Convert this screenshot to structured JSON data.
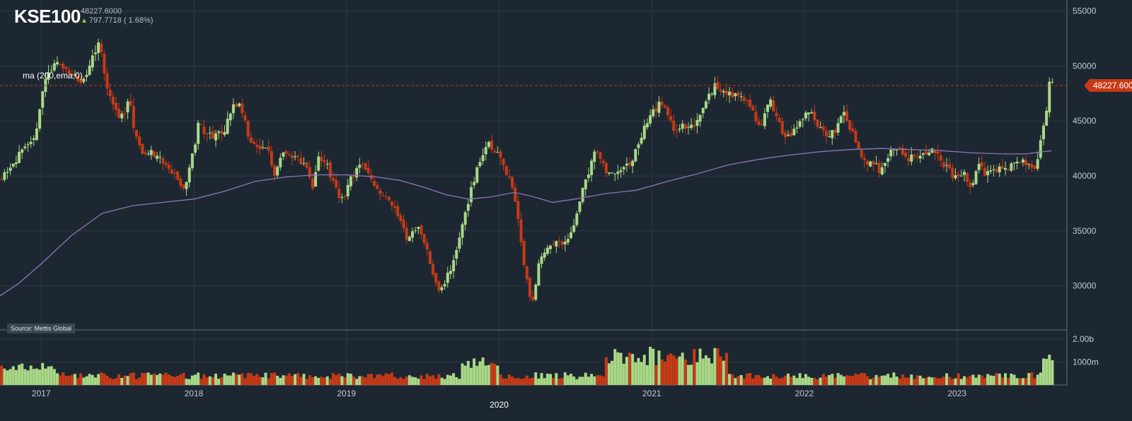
{
  "header": {
    "ticker": "KSE100",
    "price": "48227.6000",
    "change": "797.7718 ( 1.68%)"
  },
  "indicator_label": "ma (200,ema,0)",
  "source": "Source: Mettis Global",
  "last_price_label": "48227.600",
  "colors": {
    "background": "#1d2731",
    "grid": "#2c3843",
    "up": "#a9d886",
    "down": "#c63a17",
    "ma_line": "#8f74b6",
    "last_line": "#b8341a"
  },
  "chart_data": {
    "type": "candlestick",
    "title": "KSE100",
    "y_ticks": [
      "55000",
      "50000",
      "45000",
      "40000",
      "35000",
      "30000"
    ],
    "y_tick_values": [
      55000,
      50000,
      45000,
      40000,
      35000,
      30000
    ],
    "ylim": [
      26000,
      56000
    ],
    "volume_ticks": [
      "2.00b",
      "1000m"
    ],
    "volume_tick_values": [
      2000,
      1000
    ],
    "volume_ylim": [
      0,
      2300
    ],
    "x_ticks": [
      "2017",
      "2018",
      "2019",
      "2020",
      "2021",
      "2022",
      "2023"
    ],
    "x_tick_values": [
      2017.0,
      2018.0,
      2019.0,
      2020.0,
      2021.0,
      2022.0,
      2023.0
    ],
    "xlim": [
      2016.73,
      2023.72
    ],
    "last_price": 48227.6,
    "close_path": [
      [
        2016.74,
        40000
      ],
      [
        2016.85,
        41800
      ],
      [
        2016.95,
        43000
      ],
      [
        2017.02,
        48500
      ],
      [
        2017.06,
        49800
      ],
      [
        2017.12,
        50200
      ],
      [
        2017.2,
        49300
      ],
      [
        2017.27,
        48300
      ],
      [
        2017.33,
        50500
      ],
      [
        2017.38,
        52600
      ],
      [
        2017.42,
        48800
      ],
      [
        2017.47,
        46500
      ],
      [
        2017.52,
        45200
      ],
      [
        2017.58,
        46800
      ],
      [
        2017.62,
        43500
      ],
      [
        2017.67,
        42000
      ],
      [
        2017.72,
        42300
      ],
      [
        2017.78,
        41400
      ],
      [
        2017.83,
        40600
      ],
      [
        2017.88,
        40100
      ],
      [
        2017.93,
        38600
      ],
      [
        2017.98,
        41000
      ],
      [
        2018.03,
        44700
      ],
      [
        2018.08,
        44000
      ],
      [
        2018.13,
        43500
      ],
      [
        2018.2,
        44000
      ],
      [
        2018.26,
        46600
      ],
      [
        2018.31,
        46200
      ],
      [
        2018.36,
        43400
      ],
      [
        2018.42,
        42200
      ],
      [
        2018.48,
        42800
      ],
      [
        2018.53,
        40000
      ],
      [
        2018.58,
        42400
      ],
      [
        2018.63,
        42100
      ],
      [
        2018.68,
        41500
      ],
      [
        2018.73,
        41000
      ],
      [
        2018.78,
        38900
      ],
      [
        2018.82,
        41900
      ],
      [
        2018.87,
        41000
      ],
      [
        2018.93,
        38900
      ],
      [
        2018.98,
        37500
      ],
      [
        2019.03,
        39800
      ],
      [
        2019.09,
        41000
      ],
      [
        2019.15,
        40100
      ],
      [
        2019.2,
        38900
      ],
      [
        2019.25,
        38000
      ],
      [
        2019.3,
        37200
      ],
      [
        2019.35,
        36500
      ],
      [
        2019.4,
        34000
      ],
      [
        2019.46,
        35500
      ],
      [
        2019.52,
        33500
      ],
      [
        2019.57,
        31200
      ],
      [
        2019.6,
        29200
      ],
      [
        2019.63,
        29900
      ],
      [
        2019.68,
        31500
      ],
      [
        2019.74,
        34500
      ],
      [
        2019.8,
        37800
      ],
      [
        2019.86,
        40900
      ],
      [
        2019.92,
        42900
      ],
      [
        2019.97,
        42400
      ],
      [
        2020.03,
        41000
      ],
      [
        2020.08,
        39200
      ],
      [
        2020.12,
        36800
      ],
      [
        2020.17,
        31400
      ],
      [
        2020.21,
        28200
      ],
      [
        2020.26,
        31800
      ],
      [
        2020.32,
        33700
      ],
      [
        2020.38,
        34300
      ],
      [
        2020.43,
        33900
      ],
      [
        2020.48,
        35200
      ],
      [
        2020.53,
        37800
      ],
      [
        2020.58,
        40200
      ],
      [
        2020.63,
        42400
      ],
      [
        2020.68,
        41200
      ],
      [
        2020.72,
        40000
      ],
      [
        2020.77,
        40500
      ],
      [
        2020.82,
        40600
      ],
      [
        2020.87,
        41300
      ],
      [
        2020.92,
        43200
      ],
      [
        2020.97,
        45000
      ],
      [
        2021.02,
        46000
      ],
      [
        2021.06,
        46700
      ],
      [
        2021.1,
        45600
      ],
      [
        2021.15,
        44200
      ],
      [
        2021.19,
        44600
      ],
      [
        2021.23,
        44200
      ],
      [
        2021.27,
        44500
      ],
      [
        2021.32,
        45800
      ],
      [
        2021.36,
        47200
      ],
      [
        2021.41,
        48100
      ],
      [
        2021.47,
        47800
      ],
      [
        2021.52,
        47400
      ],
      [
        2021.57,
        47100
      ],
      [
        2021.62,
        47000
      ],
      [
        2021.67,
        45600
      ],
      [
        2021.72,
        44400
      ],
      [
        2021.77,
        46900
      ],
      [
        2021.82,
        45300
      ],
      [
        2021.87,
        43600
      ],
      [
        2021.91,
        43900
      ],
      [
        2021.96,
        44900
      ],
      [
        2022.01,
        45700
      ],
      [
        2022.06,
        45400
      ],
      [
        2022.11,
        44100
      ],
      [
        2022.16,
        43900
      ],
      [
        2022.21,
        44200
      ],
      [
        2022.26,
        45900
      ],
      [
        2022.31,
        44100
      ],
      [
        2022.36,
        42000
      ],
      [
        2022.41,
        41300
      ],
      [
        2022.46,
        41000
      ],
      [
        2022.5,
        40400
      ],
      [
        2022.55,
        41700
      ],
      [
        2022.6,
        42800
      ],
      [
        2022.65,
        41500
      ],
      [
        2022.7,
        41800
      ],
      [
        2022.75,
        41400
      ],
      [
        2022.8,
        42200
      ],
      [
        2022.85,
        42400
      ],
      [
        2022.9,
        41200
      ],
      [
        2022.95,
        40500
      ],
      [
        2023.0,
        39600
      ],
      [
        2023.05,
        40100
      ],
      [
        2023.09,
        38500
      ],
      [
        2023.14,
        41300
      ],
      [
        2023.18,
        40200
      ],
      [
        2023.23,
        40400
      ],
      [
        2023.28,
        40900
      ],
      [
        2023.33,
        40700
      ],
      [
        2023.38,
        41600
      ],
      [
        2023.43,
        41300
      ],
      [
        2023.48,
        41000
      ],
      [
        2023.52,
        40400
      ],
      [
        2023.56,
        44100
      ],
      [
        2023.59,
        46500
      ],
      [
        2023.61,
        49200
      ],
      [
        2023.63,
        48228
      ]
    ],
    "ma_path": [
      [
        2016.73,
        29100
      ],
      [
        2016.85,
        30200
      ],
      [
        2017.0,
        32000
      ],
      [
        2017.2,
        34600
      ],
      [
        2017.4,
        36600
      ],
      [
        2017.6,
        37300
      ],
      [
        2017.8,
        37600
      ],
      [
        2018.0,
        37900
      ],
      [
        2018.2,
        38600
      ],
      [
        2018.4,
        39500
      ],
      [
        2018.6,
        39900
      ],
      [
        2018.8,
        40100
      ],
      [
        2019.0,
        40100
      ],
      [
        2019.2,
        39900
      ],
      [
        2019.35,
        39600
      ],
      [
        2019.5,
        39000
      ],
      [
        2019.65,
        38300
      ],
      [
        2019.8,
        37900
      ],
      [
        2019.95,
        38100
      ],
      [
        2020.1,
        38500
      ],
      [
        2020.2,
        38200
      ],
      [
        2020.35,
        37600
      ],
      [
        2020.5,
        37900
      ],
      [
        2020.7,
        38400
      ],
      [
        2020.9,
        38700
      ],
      [
        2021.1,
        39500
      ],
      [
        2021.3,
        40200
      ],
      [
        2021.5,
        41000
      ],
      [
        2021.7,
        41500
      ],
      [
        2021.9,
        41900
      ],
      [
        2022.1,
        42200
      ],
      [
        2022.3,
        42400
      ],
      [
        2022.5,
        42500
      ],
      [
        2022.7,
        42400
      ],
      [
        2022.9,
        42300
      ],
      [
        2023.1,
        42100
      ],
      [
        2023.3,
        42000
      ],
      [
        2023.45,
        42000
      ],
      [
        2023.62,
        42300
      ]
    ]
  }
}
